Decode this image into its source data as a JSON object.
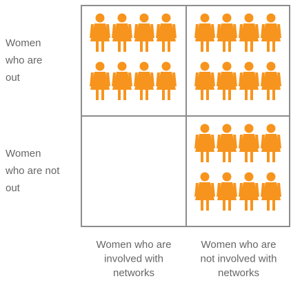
{
  "rows": [
    {
      "label": [
        "Women",
        "who are",
        "out"
      ]
    },
    {
      "label": [
        "Women",
        "who are not",
        "out"
      ]
    }
  ],
  "columns": [
    {
      "label": [
        "Women who are",
        "involved with",
        "networks"
      ]
    },
    {
      "label": [
        "Women who are",
        "not involved with",
        "networks"
      ]
    }
  ],
  "cells": [
    [
      8,
      8
    ],
    [
      0,
      8
    ]
  ],
  "icon_color": "#f7941d"
}
